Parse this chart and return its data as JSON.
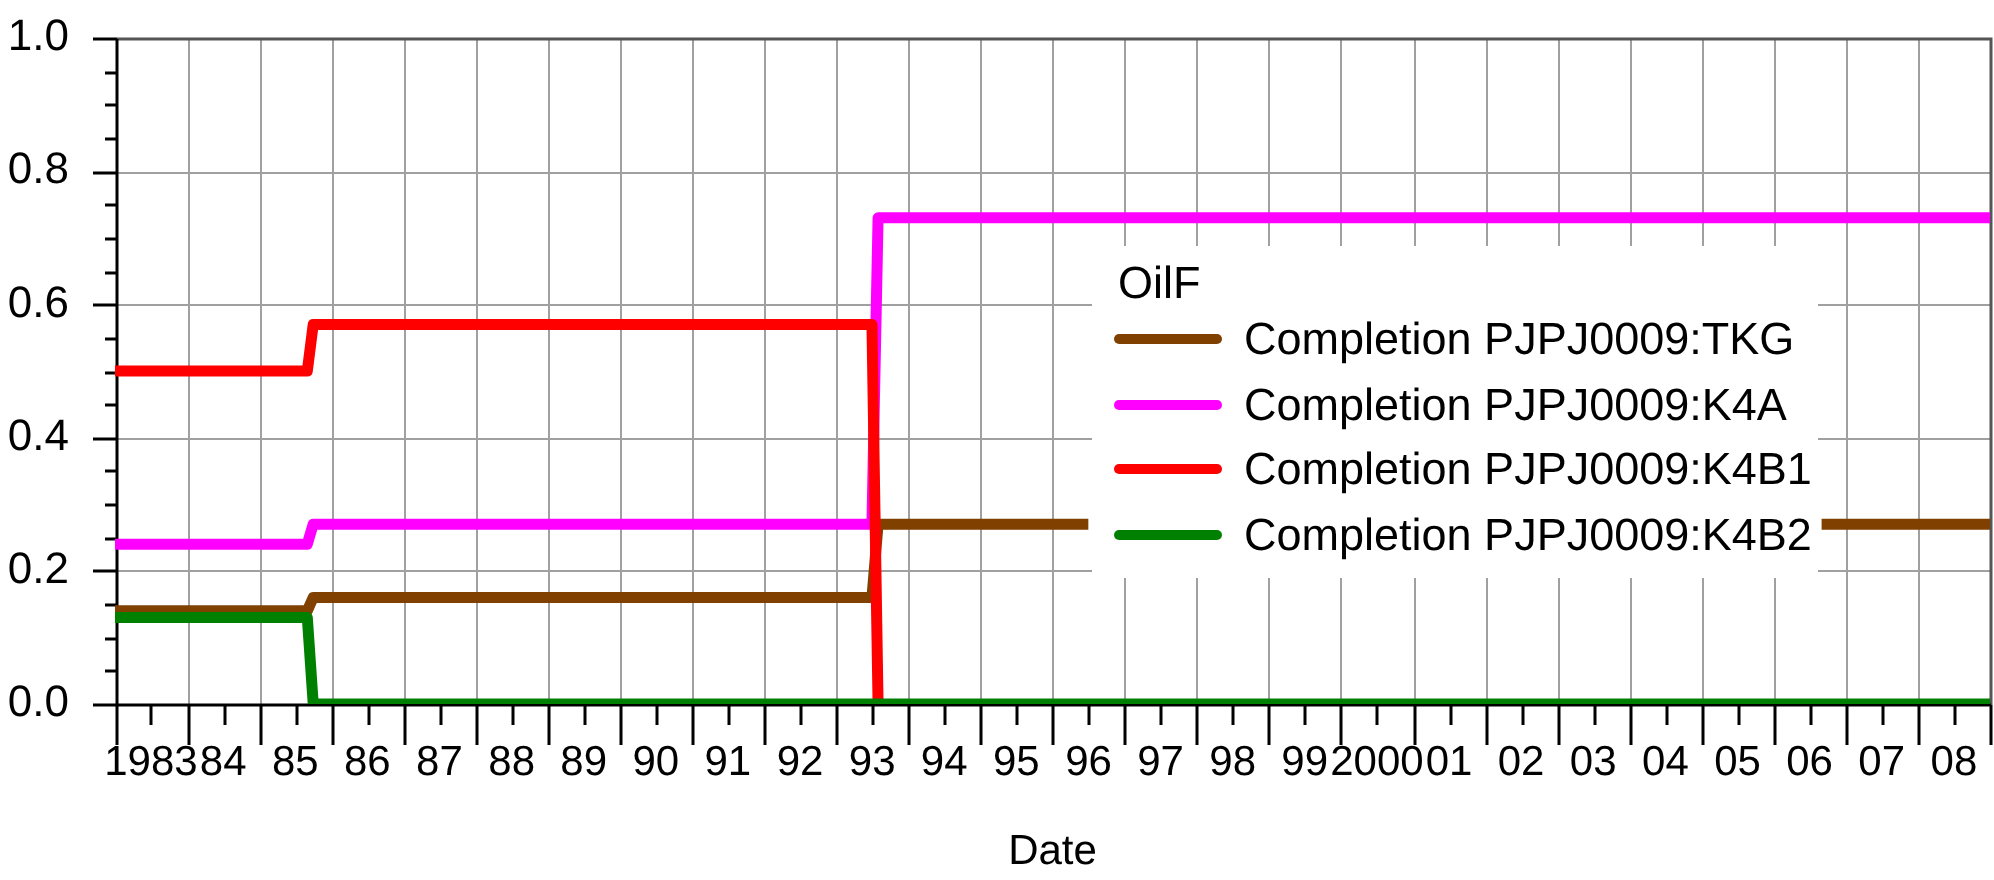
{
  "chart_data": {
    "type": "line",
    "xlabel": "Date",
    "legend_title": "OilF",
    "legend": "right",
    "grid": true,
    "xlim": [
      "1983-01-01",
      "2009-01-01"
    ],
    "xticks": [
      {
        "value": "1983-01-01",
        "label": null
      },
      {
        "value": "1983-07-02",
        "label": "1983"
      },
      {
        "value": "1984-01-01",
        "label": null
      },
      {
        "value": "1984-07-02",
        "label": "84"
      },
      {
        "value": "1985-01-01",
        "label": null
      },
      {
        "value": "1985-07-02",
        "label": "85"
      },
      {
        "value": "1986-01-01",
        "label": null
      },
      {
        "value": "1986-07-02",
        "label": "86"
      },
      {
        "value": "1987-01-01",
        "label": null
      },
      {
        "value": "1987-07-02",
        "label": "87"
      },
      {
        "value": "1988-01-01",
        "label": null
      },
      {
        "value": "1988-07-02",
        "label": "88"
      },
      {
        "value": "1989-01-01",
        "label": null
      },
      {
        "value": "1989-07-02",
        "label": "89"
      },
      {
        "value": "1990-01-01",
        "label": null
      },
      {
        "value": "1990-07-02",
        "label": "90"
      },
      {
        "value": "1991-01-01",
        "label": null
      },
      {
        "value": "1991-07-02",
        "label": "91"
      },
      {
        "value": "1992-01-01",
        "label": null
      },
      {
        "value": "1992-07-02",
        "label": "92"
      },
      {
        "value": "1993-01-01",
        "label": null
      },
      {
        "value": "1993-07-02",
        "label": "93"
      },
      {
        "value": "1994-01-01",
        "label": null
      },
      {
        "value": "1994-07-02",
        "label": "94"
      },
      {
        "value": "1995-01-01",
        "label": null
      },
      {
        "value": "1995-07-02",
        "label": "95"
      },
      {
        "value": "1996-01-01",
        "label": null
      },
      {
        "value": "1996-07-02",
        "label": "96"
      },
      {
        "value": "1997-01-01",
        "label": null
      },
      {
        "value": "1997-07-02",
        "label": "97"
      },
      {
        "value": "1998-01-01",
        "label": null
      },
      {
        "value": "1998-07-02",
        "label": "98"
      },
      {
        "value": "1999-01-01",
        "label": null
      },
      {
        "value": "1999-07-02",
        "label": "99"
      },
      {
        "value": "2000-01-01",
        "label": null
      },
      {
        "value": "2000-07-02",
        "label": "2000"
      },
      {
        "value": "2001-01-01",
        "label": null
      },
      {
        "value": "2001-07-02",
        "label": "01"
      },
      {
        "value": "2002-01-01",
        "label": null
      },
      {
        "value": "2002-07-02",
        "label": "02"
      },
      {
        "value": "2003-01-01",
        "label": null
      },
      {
        "value": "2003-07-02",
        "label": "03"
      },
      {
        "value": "2004-01-01",
        "label": null
      },
      {
        "value": "2004-07-02",
        "label": "04"
      },
      {
        "value": "2005-01-01",
        "label": null
      },
      {
        "value": "2005-07-02",
        "label": "05"
      },
      {
        "value": "2006-01-01",
        "label": null
      },
      {
        "value": "2006-07-02",
        "label": "06"
      },
      {
        "value": "2007-01-01",
        "label": null
      },
      {
        "value": "2007-07-02",
        "label": "07"
      },
      {
        "value": "2008-01-01",
        "label": null
      },
      {
        "value": "2008-07-02",
        "label": "08"
      },
      {
        "value": "2009-01-01",
        "label": null
      }
    ],
    "ylim": [
      0,
      1
    ],
    "yticks": [
      {
        "value": 0,
        "label": "0.0"
      },
      {
        "value": 0.05,
        "label": null
      },
      {
        "value": 0.1,
        "label": null
      },
      {
        "value": 0.15,
        "label": null
      },
      0.2,
      {
        "value": 0.25,
        "label": null
      },
      {
        "value": 0.3,
        "label": null
      },
      {
        "value": 0.35,
        "label": null
      },
      0.4,
      {
        "value": 0.45,
        "label": null
      },
      {
        "value": 0.5,
        "label": null
      },
      {
        "value": 0.55,
        "label": null
      },
      0.6,
      {
        "value": 0.65,
        "label": null
      },
      {
        "value": 0.7,
        "label": null
      },
      {
        "value": 0.75,
        "label": null
      },
      0.8,
      {
        "value": 0.85,
        "label": null
      },
      {
        "value": 0.9,
        "label": null
      },
      {
        "value": 0.95,
        "label": null
      },
      {
        "value": 1,
        "label": "1.0"
      }
    ],
    "series": [
      {
        "name": "Completion PJPJ0009:TKG",
        "color": "#804000",
        "x": [
          "1983-01",
          "1985-09",
          "1985-10",
          "1993-07",
          "1993-08",
          "1996-07",
          "2001-01",
          "2006-09",
          "2009-01"
        ],
        "values": [
          0.14,
          0.14,
          0.16,
          0.16,
          0.27,
          0.27,
          null,
          0.27,
          0.27
        ]
      },
      {
        "name": "Completion PJPJ0009:K4A",
        "color": "#ff00ff",
        "x": [
          "1983-01",
          "1985-09",
          "1985-10",
          "1993-07",
          "1993-08",
          "2009-01"
        ],
        "values": [
          0.24,
          0.24,
          0.27,
          0.27,
          0.73,
          0.73
        ]
      },
      {
        "name": "Completion PJPJ0009:K4B1",
        "color": "#ff0000",
        "x": [
          "1983-01",
          "1985-09",
          "1985-10",
          "1993-07",
          "1993-08"
        ],
        "values": [
          0.5,
          0.5,
          0.57,
          0.57,
          0
        ]
      },
      {
        "name": "Completion PJPJ0009:K4B2",
        "color": "#008000",
        "x": [
          "1983-01",
          "1985-09",
          "1985-10",
          "2009-01"
        ],
        "values": [
          0.13,
          0.13,
          0,
          0
        ]
      }
    ]
  }
}
